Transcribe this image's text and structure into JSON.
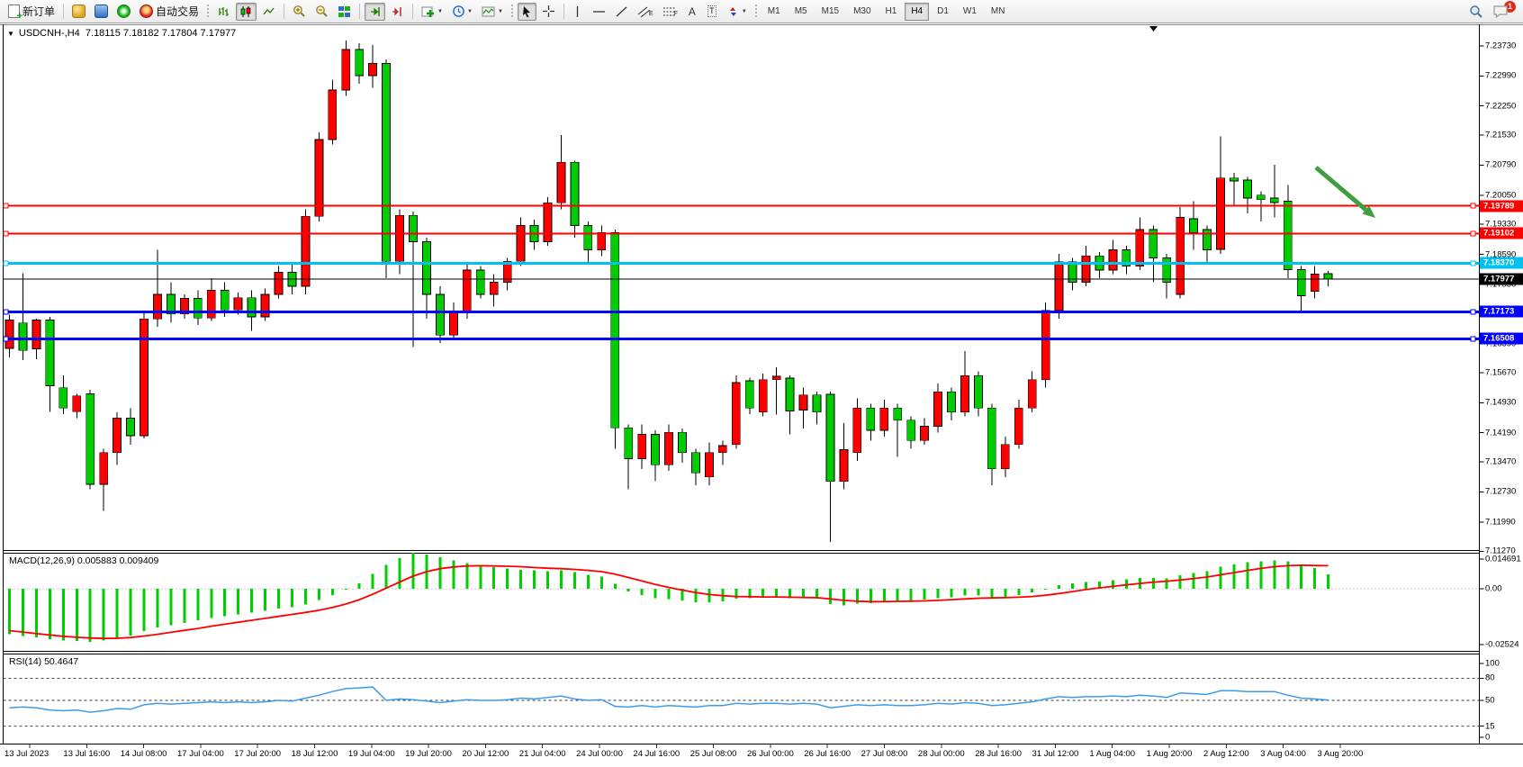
{
  "toolbar": {
    "new_order": "新订单",
    "auto_trading": "自动交易",
    "channel_sub": "E",
    "fibo_sub": "F",
    "text_tool": "A",
    "label_tool": "T",
    "badge": "1"
  },
  "timeframes": {
    "items": [
      "M1",
      "M5",
      "M15",
      "M30",
      "H1",
      "H4",
      "D1",
      "W1",
      "MN"
    ],
    "active": "H4"
  },
  "chart_header": {
    "collapse_glyph": "▼",
    "symbol": "USDCNH-,H4",
    "ohlc": "7.18115 7.18182 7.17804 7.17977"
  },
  "indicator_labels": {
    "macd": "MACD(12,26,9) 0.005883 0.009409",
    "rsi": "RSI(14) 50.4647"
  },
  "chart_data": {
    "type": "candlestick",
    "symbol": "USDCNH",
    "period": "H4",
    "title": "USDCNH-,H4 7.18115 7.18182 7.17804 7.17977",
    "up_color": "#fe0000",
    "down_color": "#00cc00",
    "y_range": {
      "top": 7.2373,
      "bottom": 7.1127
    },
    "y_ticks": [
      "7.23730",
      "7.22990",
      "7.22250",
      "7.21530",
      "7.20790",
      "7.20050",
      "7.19330",
      "7.18590",
      "7.17850",
      "7.17110",
      "7.16390",
      "7.15670",
      "7.14930",
      "7.14190",
      "7.13470",
      "7.12730",
      "7.11990",
      "7.11270"
    ],
    "x_labels": [
      "13 Jul 2023",
      "13 Jul 16:00",
      "14 Jul 08:00",
      "17 Jul 04:00",
      "17 Jul 20:00",
      "18 Jul 12:00",
      "19 Jul 04:00",
      "19 Jul 20:00",
      "20 Jul 12:00",
      "21 Jul 04:00",
      "24 Jul 00:00",
      "24 Jul 16:00",
      "25 Jul 08:00",
      "26 Jul 00:00",
      "26 Jul 16:00",
      "27 Jul 08:00",
      "28 Jul 00:00",
      "28 Jul 16:00",
      "31 Jul 12:00",
      "1 Aug 04:00",
      "1 Aug 20:00",
      "2 Aug 12:00",
      "3 Aug 04:00",
      "3 Aug 20:00"
    ],
    "candles_ohlc": [
      [
        7.1627,
        7.171,
        7.1605,
        7.1697
      ],
      [
        7.169,
        7.1813,
        7.1598,
        7.1622
      ],
      [
        7.1626,
        7.17,
        7.16,
        7.1697
      ],
      [
        7.1697,
        7.1705,
        7.1471,
        7.1535
      ],
      [
        7.153,
        7.156,
        7.1465,
        7.148
      ],
      [
        7.1471,
        7.1515,
        7.1455,
        7.151
      ],
      [
        7.1515,
        7.1525,
        7.128,
        7.1292
      ],
      [
        7.1292,
        7.138,
        7.1226,
        7.137
      ],
      [
        7.137,
        7.147,
        7.134,
        7.1455
      ],
      [
        7.1455,
        7.148,
        7.139,
        7.1412
      ],
      [
        7.1412,
        7.172,
        7.1405,
        7.17
      ],
      [
        7.17,
        7.187,
        7.168,
        7.176
      ],
      [
        7.176,
        7.179,
        7.169,
        7.1712
      ],
      [
        7.1712,
        7.176,
        7.17,
        7.175
      ],
      [
        7.175,
        7.177,
        7.1685,
        7.1702
      ],
      [
        7.1702,
        7.18,
        7.1695,
        7.177
      ],
      [
        7.177,
        7.179,
        7.1705,
        7.1722
      ],
      [
        7.1722,
        7.1765,
        7.171,
        7.1752
      ],
      [
        7.1752,
        7.177,
        7.167,
        7.1705
      ],
      [
        7.1705,
        7.1775,
        7.1695,
        7.176
      ],
      [
        7.176,
        7.183,
        7.175,
        7.1815
      ],
      [
        7.1815,
        7.184,
        7.176,
        7.178
      ],
      [
        7.178,
        7.197,
        7.176,
        7.1953
      ],
      [
        7.1953,
        7.216,
        7.194,
        7.2142
      ],
      [
        7.2142,
        7.229,
        7.213,
        7.2264
      ],
      [
        7.2264,
        7.2386,
        7.225,
        7.2364
      ],
      [
        7.2364,
        7.238,
        7.228,
        7.23
      ],
      [
        7.23,
        7.2375,
        7.227,
        7.233
      ],
      [
        7.233,
        7.234,
        7.18,
        7.1842
      ],
      [
        7.1842,
        7.197,
        7.181,
        7.1955
      ],
      [
        7.1955,
        7.1965,
        7.163,
        7.189
      ],
      [
        7.189,
        7.19,
        7.17,
        7.176
      ],
      [
        7.176,
        7.178,
        7.164,
        7.166
      ],
      [
        7.166,
        7.174,
        7.165,
        7.1718
      ],
      [
        7.1718,
        7.184,
        7.17,
        7.182
      ],
      [
        7.182,
        7.183,
        7.175,
        7.176
      ],
      [
        7.176,
        7.181,
        7.173,
        7.179
      ],
      [
        7.179,
        7.185,
        7.177,
        7.1842
      ],
      [
        7.1842,
        7.195,
        7.183,
        7.193
      ],
      [
        7.193,
        7.1945,
        7.187,
        7.189
      ],
      [
        7.189,
        7.2,
        7.188,
        7.1986
      ],
      [
        7.1986,
        7.2153,
        7.197,
        7.2086
      ],
      [
        7.2086,
        7.209,
        7.19,
        7.193
      ],
      [
        7.193,
        7.194,
        7.184,
        7.187
      ],
      [
        7.187,
        7.193,
        7.1855,
        7.1913
      ],
      [
        7.1913,
        7.192,
        7.138,
        7.1431
      ],
      [
        7.1431,
        7.144,
        7.128,
        7.1355
      ],
      [
        7.1355,
        7.144,
        7.133,
        7.1415
      ],
      [
        7.1415,
        7.1425,
        7.13,
        7.134
      ],
      [
        7.134,
        7.144,
        7.1325,
        7.142
      ],
      [
        7.142,
        7.143,
        7.1345,
        7.137
      ],
      [
        7.137,
        7.138,
        7.129,
        7.132
      ],
      [
        7.131,
        7.1395,
        7.129,
        7.137
      ],
      [
        7.137,
        7.14,
        7.134,
        7.1387
      ],
      [
        7.139,
        7.156,
        7.138,
        7.1543
      ],
      [
        7.1547,
        7.1555,
        7.1465,
        7.148
      ],
      [
        7.147,
        7.1565,
        7.146,
        7.155
      ],
      [
        7.155,
        7.158,
        7.1464,
        7.1558
      ],
      [
        7.1554,
        7.156,
        7.1415,
        7.1473
      ],
      [
        7.1475,
        7.153,
        7.143,
        7.1512
      ],
      [
        7.1512,
        7.152,
        7.144,
        7.147
      ],
      [
        7.1514,
        7.152,
        7.115,
        7.1299
      ],
      [
        7.1299,
        7.1443,
        7.128,
        7.1377
      ],
      [
        7.137,
        7.1504,
        7.135,
        7.148
      ],
      [
        7.148,
        7.149,
        7.14,
        7.1425
      ],
      [
        7.1425,
        7.15,
        7.141,
        7.148
      ],
      [
        7.148,
        7.149,
        7.136,
        7.145
      ],
      [
        7.145,
        7.146,
        7.138,
        7.14
      ],
      [
        7.14,
        7.1455,
        7.139,
        7.1435
      ],
      [
        7.1435,
        7.154,
        7.142,
        7.152
      ],
      [
        7.152,
        7.153,
        7.145,
        7.147
      ],
      [
        7.147,
        7.162,
        7.146,
        7.156
      ],
      [
        7.156,
        7.157,
        7.146,
        7.148
      ],
      [
        7.148,
        7.149,
        7.129,
        7.133
      ],
      [
        7.133,
        7.141,
        7.131,
        7.139
      ],
      [
        7.139,
        7.15,
        7.138,
        7.148
      ],
      [
        7.148,
        7.157,
        7.147,
        7.155
      ],
      [
        7.155,
        7.174,
        7.153,
        7.172
      ],
      [
        7.172,
        7.186,
        7.17,
        7.184
      ],
      [
        7.184,
        7.185,
        7.177,
        7.179
      ],
      [
        7.179,
        7.188,
        7.178,
        7.1855
      ],
      [
        7.1855,
        7.1865,
        7.18,
        7.182
      ],
      [
        7.182,
        7.1895,
        7.181,
        7.187
      ],
      [
        7.187,
        7.188,
        7.181,
        7.183
      ],
      [
        7.183,
        7.195,
        7.182,
        7.192
      ],
      [
        7.192,
        7.193,
        7.179,
        7.185
      ],
      [
        7.185,
        7.186,
        7.175,
        7.179
      ],
      [
        7.176,
        7.1976,
        7.175,
        7.195
      ],
      [
        7.1947,
        7.199,
        7.187,
        7.1913
      ],
      [
        7.192,
        7.193,
        7.1838,
        7.187
      ],
      [
        7.1871,
        7.215,
        7.186,
        7.2047
      ],
      [
        7.2047,
        7.206,
        7.198,
        7.204
      ],
      [
        7.2042,
        7.205,
        7.196,
        7.1998
      ],
      [
        7.2005,
        7.2015,
        7.194,
        7.1994
      ],
      [
        7.1998,
        7.208,
        7.195,
        7.1987
      ],
      [
        7.199,
        7.203,
        7.18,
        7.1821
      ],
      [
        7.1821,
        7.183,
        7.172,
        7.1757
      ],
      [
        7.1768,
        7.183,
        7.175,
        7.181
      ],
      [
        7.18115,
        7.18182,
        7.17804,
        7.17977
      ]
    ],
    "overlays": {
      "hlines": [
        {
          "name": "resistance-upper",
          "price": 7.19789,
          "label": "7.19789",
          "color": "#fe0000",
          "width": 2
        },
        {
          "name": "resistance-lower",
          "price": 7.19102,
          "label": "7.19102",
          "color": "#fe0000",
          "width": 2
        },
        {
          "name": "mid-level",
          "price": 7.1837,
          "label": "7.18370",
          "color": "#00c0f0",
          "width": 3
        },
        {
          "name": "support-upper",
          "price": 7.17173,
          "label": "7.17173",
          "color": "#0000fe",
          "width": 3
        },
        {
          "name": "support-lower",
          "price": 7.16508,
          "label": "7.16508",
          "color": "#0000fe",
          "width": 3
        }
      ],
      "bid_line": {
        "price": 7.17977,
        "label": "7.17977",
        "color": "#000000"
      },
      "arrow": {
        "color": "#3f9e3f",
        "from": [
          1462,
          186
        ],
        "to": [
          1528,
          242
        ]
      }
    },
    "indicators": {
      "macd": {
        "params": "12,26,9",
        "main_value": 0.005883,
        "signal_value": 0.009409,
        "axis_ticks": [
          "0.014691",
          "0.00",
          "-0.02524"
        ],
        "range": {
          "max": 0.014691,
          "min": -0.02524
        },
        "hist_color": "#00cf00",
        "signal_color": "#fe0000",
        "histogram": [
          -0.0185,
          -0.0192,
          -0.0198,
          -0.0205,
          -0.021,
          -0.0213,
          -0.0215,
          -0.021,
          -0.02,
          -0.019,
          -0.0172,
          -0.0158,
          -0.0148,
          -0.0138,
          -0.0128,
          -0.0119,
          -0.0111,
          -0.0104,
          -0.0097,
          -0.0089,
          -0.0081,
          -0.0074,
          -0.0063,
          -0.0046,
          -0.0026,
          -0.0004,
          0.0022,
          0.006,
          0.0098,
          0.0125,
          0.0147,
          0.014,
          0.0128,
          0.0115,
          0.0105,
          0.0095,
          0.0088,
          0.0082,
          0.0078,
          0.0075,
          0.0072,
          0.0075,
          0.0068,
          0.0058,
          0.005,
          0.002,
          -0.001,
          -0.0025,
          -0.0038,
          -0.0042,
          -0.0048,
          -0.0055,
          -0.0055,
          -0.005,
          -0.004,
          -0.0038,
          -0.0035,
          -0.0034,
          -0.0038,
          -0.0036,
          -0.004,
          -0.0062,
          -0.0068,
          -0.006,
          -0.0058,
          -0.0052,
          -0.005,
          -0.0048,
          -0.0044,
          -0.0038,
          -0.0035,
          -0.0028,
          -0.0028,
          -0.0038,
          -0.0032,
          -0.0025,
          -0.0015,
          0.0,
          0.0015,
          0.0022,
          0.0028,
          0.003,
          0.0035,
          0.0038,
          0.0045,
          0.0045,
          0.0042,
          0.0055,
          0.0065,
          0.0072,
          0.009,
          0.01,
          0.0108,
          0.0112,
          0.0115,
          0.0112,
          0.01,
          0.0085,
          0.0059
        ],
        "signal": [
          -0.017,
          -0.0176,
          -0.0182,
          -0.0188,
          -0.0193,
          -0.0197,
          -0.02,
          -0.0202,
          -0.0201,
          -0.0198,
          -0.0192,
          -0.0185,
          -0.0177,
          -0.0169,
          -0.0161,
          -0.0152,
          -0.0144,
          -0.0136,
          -0.0128,
          -0.012,
          -0.0112,
          -0.0104,
          -0.0096,
          -0.0087,
          -0.0076,
          -0.0062,
          -0.0044,
          -0.0022,
          0.0003,
          0.0028,
          0.0052,
          0.007,
          0.0082,
          0.0089,
          0.0093,
          0.0094,
          0.0093,
          0.0092,
          0.009,
          0.0087,
          0.0084,
          0.0082,
          0.0079,
          0.0075,
          0.007,
          0.006,
          0.0046,
          0.0032,
          0.0018,
          0.0006,
          -0.0005,
          -0.0015,
          -0.0023,
          -0.0028,
          -0.0031,
          -0.0032,
          -0.0033,
          -0.0033,
          -0.0034,
          -0.0035,
          -0.0036,
          -0.0041,
          -0.0047,
          -0.005,
          -0.0052,
          -0.0052,
          -0.0051,
          -0.005,
          -0.0049,
          -0.0047,
          -0.0044,
          -0.0041,
          -0.0038,
          -0.0037,
          -0.0036,
          -0.0034,
          -0.0031,
          -0.0026,
          -0.0019,
          -0.0011,
          -0.0003,
          0.0004,
          0.001,
          0.0016,
          0.0022,
          0.0027,
          0.0031,
          0.0036,
          0.0042,
          0.0048,
          0.0057,
          0.0066,
          0.0075,
          0.0083,
          0.009,
          0.0094,
          0.0096,
          0.0095,
          0.0094
        ]
      },
      "rsi": {
        "period": 14,
        "value": 50.4647,
        "axis_ticks": [
          "100",
          "80",
          "50",
          "15",
          "0"
        ],
        "levels": [
          80,
          50,
          15
        ],
        "color": "#3d9bef",
        "values": [
          40,
          41,
          40,
          37,
          36,
          37,
          34,
          36,
          39,
          38,
          44,
          46,
          45,
          46,
          47,
          48,
          47,
          48,
          47,
          48,
          50,
          49,
          53,
          57,
          62,
          66,
          67,
          68,
          50,
          52,
          51,
          49,
          47,
          49,
          51,
          50,
          50,
          51,
          53,
          52,
          54,
          56,
          52,
          50,
          51,
          42,
          41,
          43,
          41,
          43,
          42,
          41,
          43,
          43,
          46,
          45,
          46,
          46,
          45,
          46,
          45,
          40,
          42,
          44,
          43,
          44,
          43,
          43,
          44,
          46,
          45,
          47,
          46,
          43,
          44,
          46,
          48,
          52,
          55,
          54,
          55,
          55,
          56,
          55,
          57,
          56,
          54,
          60,
          59,
          58,
          63,
          63,
          62,
          62,
          62,
          57,
          53,
          52,
          50.46
        ]
      }
    }
  }
}
